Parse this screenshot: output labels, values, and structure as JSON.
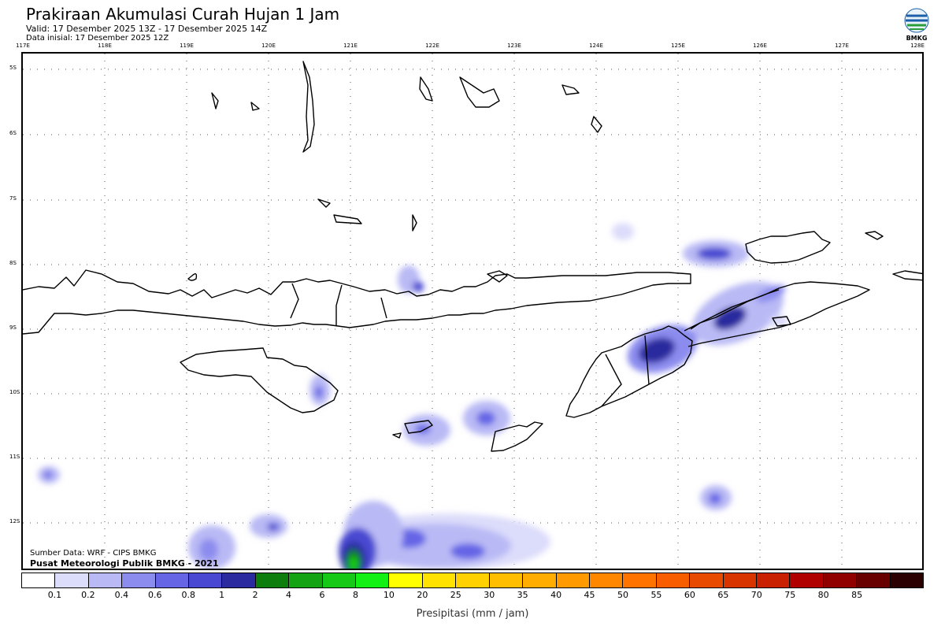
{
  "header": {
    "title": "Prakiraan Akumulasi Curah Hujan 1 Jam",
    "valid": "Valid: 17 Desember 2025 13Z - 17 Desember 2025 14Z",
    "initial": "Data inisial: 17 Desember 2025 12Z",
    "logo_text": "BMKG"
  },
  "axes": {
    "longitudes": [
      "117E",
      "118E",
      "119E",
      "120E",
      "121E",
      "122E",
      "123E",
      "124E",
      "125E",
      "126E",
      "127E",
      "128E"
    ],
    "latitudes": [
      "5S",
      "6S",
      "7S",
      "8S",
      "9S",
      "10S",
      "11S",
      "12S"
    ]
  },
  "footer": {
    "source": "Sumber Data: WRF - CIPS BMKG",
    "organization": "Pusat Meteorologi Publik BMKG - 2021"
  },
  "legend": {
    "title": "Presipitasi (mm / jam)",
    "colors": [
      "#ffffff",
      "#dcdcfb",
      "#b9b9f5",
      "#8c8cef",
      "#6565e6",
      "#4848d2",
      "#2b2b9f",
      "#0d7d0d",
      "#13a313",
      "#17c917",
      "#13f013",
      "#ffff00",
      "#ffe200",
      "#ffd100",
      "#ffbf00",
      "#ffad00",
      "#ff9a00",
      "#ff8700",
      "#ff7400",
      "#f85e00",
      "#e84a00",
      "#d83400",
      "#c82000",
      "#b00000",
      "#900000",
      "#680000",
      "#2a0000"
    ],
    "labels": [
      "0.1",
      "0.2",
      "0.4",
      "0.6",
      "0.8",
      "1",
      "2",
      "4",
      "6",
      "8",
      "10",
      "20",
      "25",
      "30",
      "35",
      "40",
      "45",
      "50",
      "55",
      "60",
      "65",
      "70",
      "75",
      "80",
      "85"
    ]
  }
}
